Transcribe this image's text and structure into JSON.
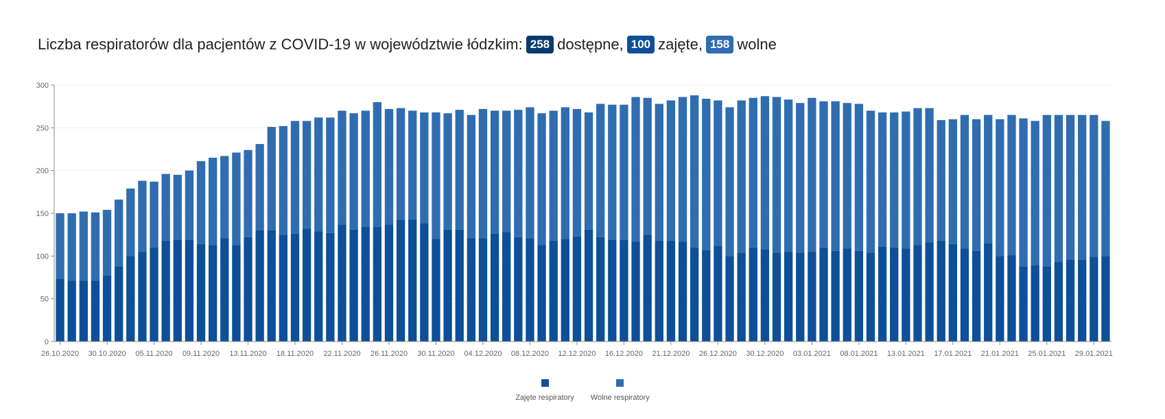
{
  "header": {
    "title_prefix": "Liczba respiratorów dla pacjentów z COVID-19 w województwie łódzkim:",
    "total_value": "258",
    "total_label": "dostępne,",
    "occupied_value": "100",
    "occupied_label": "zajęte,",
    "free_value": "158",
    "free_label": "wolne"
  },
  "colors": {
    "occupied": "#0d4f98",
    "free": "#2f6db0",
    "axis": "#888888",
    "grid": "#f0f0f0"
  },
  "legend": {
    "occupied_label": "Zajęte respiratory",
    "free_label": "Wolne respiratory"
  },
  "chart_data": {
    "type": "bar",
    "stacked": true,
    "title": "Liczba respiratorów dla pacjentów z COVID-19 w województwie łódzkim",
    "xlabel": "",
    "ylabel": "",
    "ylim": [
      0,
      300
    ],
    "yticks": [
      0,
      50,
      100,
      150,
      200,
      250,
      300
    ],
    "start_date": "26.10.2020",
    "x_tick_labels": [
      "26.10.2020",
      "30.10.2020",
      "05.11.2020",
      "09.11.2020",
      "13.11.2020",
      "18.11.2020",
      "22.11.2020",
      "26.11.2020",
      "30.11.2020",
      "04.12.2020",
      "08.12.2020",
      "12.12.2020",
      "16.12.2020",
      "21.12.2020",
      "26.12.2020",
      "30.12.2020",
      "03.01.2021",
      "08.01.2021",
      "13.01.2021",
      "17.01.2021",
      "21.01.2021",
      "25.01.2021",
      "29.01.2021"
    ],
    "x_tick_indices": [
      0,
      4,
      8,
      12,
      16,
      20,
      24,
      28,
      32,
      36,
      40,
      44,
      48,
      52,
      56,
      60,
      64,
      68,
      72,
      76,
      80,
      84,
      88
    ],
    "grid": true,
    "legend_position": "bottom-center",
    "series": [
      {
        "name": "Zajęte respiratory",
        "values": [
          73,
          71,
          71,
          71,
          77,
          88,
          100,
          105,
          110,
          118,
          119,
          119,
          114,
          113,
          121,
          113,
          122,
          130,
          130,
          125,
          126,
          132,
          129,
          127,
          137,
          131,
          134,
          134,
          137,
          142,
          143,
          138,
          120,
          131,
          131,
          121,
          121,
          126,
          128,
          122,
          121,
          113,
          118,
          120,
          123,
          131,
          122,
          119,
          119,
          117,
          125,
          118,
          118,
          117,
          110,
          107,
          112,
          100,
          104,
          110,
          108,
          104,
          105,
          104,
          105,
          110,
          106,
          109,
          106,
          104,
          111,
          110,
          109,
          113,
          116,
          118,
          114,
          109,
          106,
          115,
          100,
          101,
          88,
          89,
          88,
          93,
          96,
          96,
          99,
          100
        ]
      },
      {
        "name": "Wolne respiratory",
        "values": [
          77,
          79,
          81,
          80,
          77,
          78,
          79,
          83,
          77,
          78,
          76,
          81,
          97,
          102,
          96,
          108,
          102,
          101,
          121,
          127,
          132,
          126,
          133,
          135,
          133,
          136,
          136,
          146,
          135,
          131,
          127,
          130,
          148,
          136,
          140,
          144,
          151,
          144,
          142,
          149,
          153,
          154,
          152,
          154,
          149,
          137,
          156,
          158,
          158,
          169,
          160,
          160,
          164,
          169,
          178,
          177,
          170,
          174,
          178,
          175,
          179,
          182,
          178,
          175,
          180,
          171,
          175,
          170,
          172,
          166,
          157,
          158,
          160,
          160,
          157,
          141,
          146,
          156,
          154,
          150,
          160,
          164,
          173,
          169,
          177,
          172,
          169,
          169,
          166,
          158
        ]
      }
    ]
  }
}
